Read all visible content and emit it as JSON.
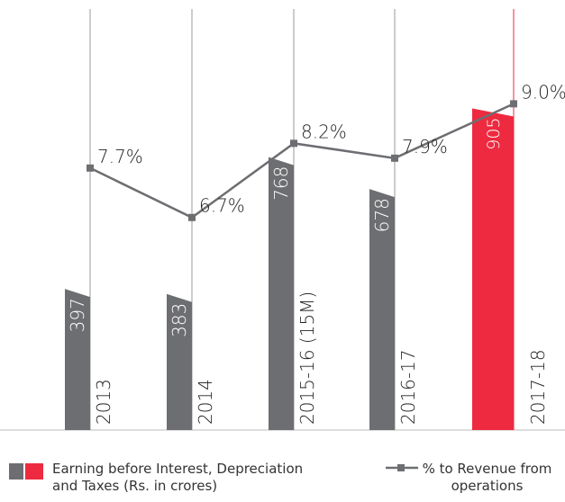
{
  "chart_data": {
    "type": "bar-line",
    "categories": [
      "2013",
      "2014",
      "2015-16 (15M)",
      "2016-17",
      "2017-18"
    ],
    "series": [
      {
        "name": "Earning before Interest, Depreciation and Taxes (Rs. in crores)",
        "type": "bar",
        "color": "#6d6e71",
        "colors": [
          "#6d6e71",
          "#6d6e71",
          "#6d6e71",
          "#6d6e71",
          "#ed2a3f"
        ],
        "values": [
          397,
          383,
          768,
          678,
          905
        ]
      },
      {
        "name": "% to Revenue from operations",
        "type": "line",
        "axis": "y2",
        "color": "#6d6e71",
        "values": [
          7.7,
          6.7,
          8.2,
          7.9,
          9.0
        ],
        "value_labels": [
          "7.7%",
          "6.7%",
          "8.2%",
          "7.9%",
          "9.0%"
        ]
      }
    ],
    "ylim": [
      0,
      1210
    ],
    "y2lim": [
      2.4,
      11.1
    ]
  }
}
